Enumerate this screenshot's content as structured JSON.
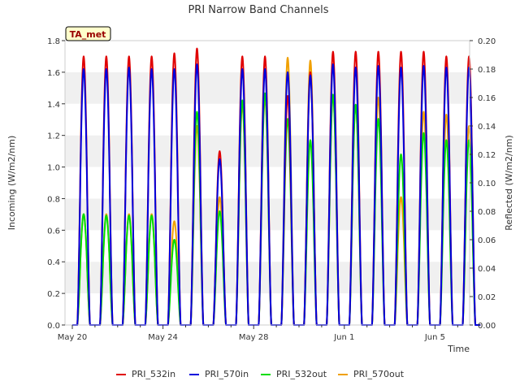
{
  "chart_data": {
    "type": "line",
    "title": "PRI Narrow Band Channels",
    "badge": "TA_met",
    "xlabel": "Time",
    "ylabel_left": "Incoming (W/m2/nm)",
    "ylabel_right": "Reflected (W/m2/nm)",
    "ylim_left": [
      0,
      1.8
    ],
    "ylim_right": [
      0,
      0.2
    ],
    "xlim_days": [
      0,
      17.7
    ],
    "xticks": [
      {
        "day": 0,
        "label": "May 20"
      },
      {
        "day": 4,
        "label": "May 24"
      },
      {
        "day": 8,
        "label": "May 28"
      },
      {
        "day": 12,
        "label": "Jun 1"
      },
      {
        "day": 16,
        "label": "Jun 5"
      }
    ],
    "yticks_left": [
      "0.0",
      "0.2",
      "0.4",
      "0.6",
      "0.8",
      "1.0",
      "1.2",
      "1.4",
      "1.6",
      "1.8"
    ],
    "yticks_right": [
      "0.00",
      "0.02",
      "0.04",
      "0.06",
      "0.08",
      "0.10",
      "0.12",
      "0.14",
      "0.16",
      "0.18",
      "0.20"
    ],
    "grid_bands": true,
    "legend_position": "bottom",
    "series": [
      {
        "name": "PRI_532in",
        "color": "#e00000",
        "axis": "left",
        "day_peaks": [
          1.7,
          1.7,
          1.7,
          1.7,
          1.72,
          1.75,
          1.1,
          1.7,
          1.7,
          1.45,
          1.6,
          1.73,
          1.73,
          1.73,
          1.73,
          1.73,
          1.7,
          1.7
        ]
      },
      {
        "name": "PRI_570in",
        "color": "#0000dd",
        "axis": "left",
        "day_peaks": [
          1.62,
          1.62,
          1.63,
          1.62,
          1.62,
          1.65,
          1.05,
          1.62,
          1.62,
          1.6,
          1.58,
          1.65,
          1.63,
          1.64,
          1.63,
          1.64,
          1.63,
          1.63
        ]
      },
      {
        "name": "PRI_532out",
        "color": "#00dd00",
        "axis": "right",
        "day_peaks": [
          0.078,
          0.077,
          0.077,
          0.077,
          0.06,
          0.15,
          0.08,
          0.158,
          0.163,
          0.145,
          0.13,
          0.162,
          0.155,
          0.145,
          0.12,
          0.135,
          0.13,
          0.13
        ]
      },
      {
        "name": "PRI_570out",
        "color": "#f0a000",
        "axis": "right",
        "day_peaks": [
          0.078,
          0.078,
          0.078,
          0.078,
          0.073,
          0.14,
          0.09,
          0.155,
          0.16,
          0.188,
          0.186,
          0.162,
          0.155,
          0.16,
          0.09,
          0.15,
          0.148,
          0.14
        ]
      }
    ]
  }
}
